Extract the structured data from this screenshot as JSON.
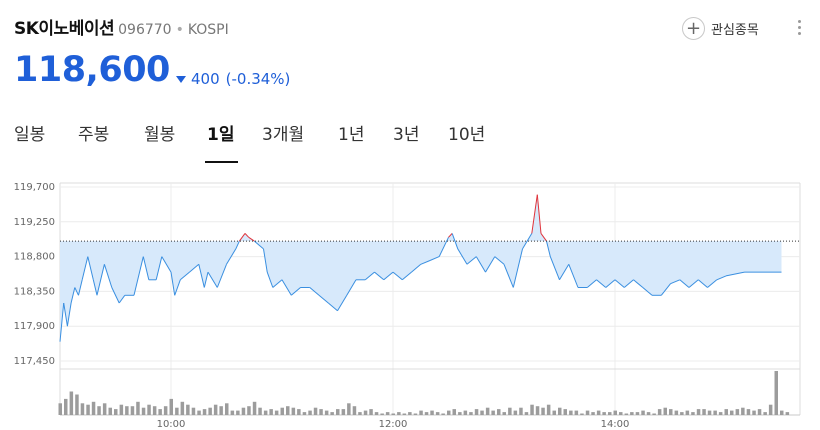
{
  "stock": {
    "name": "SK이노베이션",
    "code": "096770",
    "separator": "•",
    "market": "KOSPI",
    "price": "118,600",
    "change": "400",
    "change_pct": "(-0.34%)",
    "direction": "down"
  },
  "favorite": {
    "icon": "plus-circle-icon",
    "label": "관심종목"
  },
  "more": {
    "icon": "more-vertical-icon"
  },
  "tabs": [
    {
      "label": "일봉",
      "active": false
    },
    {
      "label": "주봉",
      "active": false
    },
    {
      "label": "월봉",
      "active": false
    },
    {
      "label": "1일",
      "active": true
    },
    {
      "label": "3개월",
      "active": false
    },
    {
      "label": "1년",
      "active": false
    },
    {
      "label": "3년",
      "active": false
    },
    {
      "label": "10년",
      "active": false
    }
  ],
  "colors": {
    "up": "#e0333b",
    "down": "#1f5fd8",
    "line": "#3a8fe0",
    "fill": "#d7e9fb",
    "volume": "#9c9c9c",
    "grid": "#ececec"
  },
  "chart_data": {
    "type": "line",
    "session": {
      "start": "09:00",
      "end": "15:30"
    },
    "reference_price": 119000,
    "ylim": [
      117450,
      119700
    ],
    "y_ticks": [
      "119,700",
      "119,250",
      "118,800",
      "118,350",
      "117,900",
      "117,450"
    ],
    "x_ticks": [
      "10:00",
      "12:00",
      "14:00"
    ],
    "x_tick_minutes": [
      60,
      180,
      300
    ],
    "price_series": [
      [
        0,
        117700
      ],
      [
        2,
        118200
      ],
      [
        4,
        117900
      ],
      [
        6,
        118200
      ],
      [
        8,
        118400
      ],
      [
        10,
        118300
      ],
      [
        12,
        118500
      ],
      [
        15,
        118800
      ],
      [
        18,
        118500
      ],
      [
        20,
        118300
      ],
      [
        24,
        118700
      ],
      [
        28,
        118400
      ],
      [
        32,
        118200
      ],
      [
        35,
        118300
      ],
      [
        40,
        118300
      ],
      [
        45,
        118800
      ],
      [
        48,
        118500
      ],
      [
        52,
        118500
      ],
      [
        55,
        118800
      ],
      [
        60,
        118600
      ],
      [
        62,
        118300
      ],
      [
        65,
        118500
      ],
      [
        70,
        118600
      ],
      [
        75,
        118700
      ],
      [
        78,
        118400
      ],
      [
        80,
        118600
      ],
      [
        85,
        118400
      ],
      [
        90,
        118700
      ],
      [
        95,
        118900
      ],
      [
        97,
        119000
      ],
      [
        100,
        119100
      ],
      [
        102,
        119050
      ],
      [
        105,
        119000
      ],
      [
        110,
        118900
      ],
      [
        112,
        118600
      ],
      [
        115,
        118400
      ],
      [
        120,
        118500
      ],
      [
        125,
        118300
      ],
      [
        130,
        118400
      ],
      [
        135,
        118400
      ],
      [
        140,
        118300
      ],
      [
        145,
        118200
      ],
      [
        150,
        118100
      ],
      [
        155,
        118300
      ],
      [
        160,
        118500
      ],
      [
        165,
        118500
      ],
      [
        170,
        118600
      ],
      [
        175,
        118500
      ],
      [
        180,
        118600
      ],
      [
        185,
        118500
      ],
      [
        190,
        118600
      ],
      [
        195,
        118700
      ],
      [
        200,
        118750
      ],
      [
        205,
        118800
      ],
      [
        210,
        119050
      ],
      [
        212,
        119100
      ],
      [
        215,
        118900
      ],
      [
        220,
        118700
      ],
      [
        225,
        118800
      ],
      [
        230,
        118600
      ],
      [
        235,
        118800
      ],
      [
        240,
        118700
      ],
      [
        245,
        118400
      ],
      [
        250,
        118900
      ],
      [
        255,
        119100
      ],
      [
        258,
        119600
      ],
      [
        260,
        119100
      ],
      [
        263,
        119000
      ],
      [
        265,
        118800
      ],
      [
        270,
        118500
      ],
      [
        275,
        118700
      ],
      [
        280,
        118400
      ],
      [
        285,
        118400
      ],
      [
        290,
        118500
      ],
      [
        295,
        118400
      ],
      [
        300,
        118500
      ],
      [
        305,
        118400
      ],
      [
        310,
        118500
      ],
      [
        315,
        118400
      ],
      [
        320,
        118300
      ],
      [
        325,
        118300
      ],
      [
        330,
        118450
      ],
      [
        335,
        118500
      ],
      [
        340,
        118400
      ],
      [
        345,
        118500
      ],
      [
        350,
        118400
      ],
      [
        355,
        118500
      ],
      [
        360,
        118550
      ],
      [
        370,
        118600
      ],
      [
        380,
        118600
      ],
      [
        390,
        118600
      ]
    ],
    "volume_bars": [
      [
        0,
        8
      ],
      [
        3,
        11
      ],
      [
        6,
        16
      ],
      [
        9,
        14
      ],
      [
        12,
        8
      ],
      [
        15,
        7
      ],
      [
        18,
        9
      ],
      [
        21,
        6
      ],
      [
        24,
        8
      ],
      [
        27,
        5
      ],
      [
        30,
        4
      ],
      [
        33,
        7
      ],
      [
        36,
        6
      ],
      [
        39,
        6
      ],
      [
        42,
        9
      ],
      [
        45,
        5
      ],
      [
        48,
        7
      ],
      [
        51,
        6
      ],
      [
        54,
        4
      ],
      [
        57,
        6
      ],
      [
        60,
        11
      ],
      [
        63,
        5
      ],
      [
        66,
        9
      ],
      [
        69,
        7
      ],
      [
        72,
        5
      ],
      [
        75,
        3
      ],
      [
        78,
        4
      ],
      [
        81,
        5
      ],
      [
        84,
        7
      ],
      [
        87,
        6
      ],
      [
        90,
        8
      ],
      [
        93,
        3
      ],
      [
        96,
        3
      ],
      [
        99,
        5
      ],
      [
        102,
        6
      ],
      [
        105,
        9
      ],
      [
        108,
        5
      ],
      [
        111,
        3
      ],
      [
        114,
        4
      ],
      [
        117,
        3
      ],
      [
        120,
        5
      ],
      [
        123,
        6
      ],
      [
        126,
        5
      ],
      [
        129,
        4
      ],
      [
        132,
        2
      ],
      [
        135,
        3
      ],
      [
        138,
        5
      ],
      [
        141,
        4
      ],
      [
        144,
        3
      ],
      [
        147,
        2
      ],
      [
        150,
        4
      ],
      [
        153,
        4
      ],
      [
        156,
        8
      ],
      [
        159,
        6
      ],
      [
        162,
        2
      ],
      [
        165,
        3
      ],
      [
        168,
        4
      ],
      [
        171,
        2
      ],
      [
        174,
        1
      ],
      [
        177,
        2
      ],
      [
        180,
        1
      ],
      [
        183,
        2
      ],
      [
        186,
        1
      ],
      [
        189,
        2
      ],
      [
        192,
        1
      ],
      [
        195,
        3
      ],
      [
        198,
        2
      ],
      [
        201,
        3
      ],
      [
        204,
        2
      ],
      [
        207,
        1
      ],
      [
        210,
        3
      ],
      [
        213,
        4
      ],
      [
        216,
        2
      ],
      [
        219,
        3
      ],
      [
        222,
        2
      ],
      [
        225,
        4
      ],
      [
        228,
        3
      ],
      [
        231,
        5
      ],
      [
        234,
        3
      ],
      [
        237,
        4
      ],
      [
        240,
        2
      ],
      [
        243,
        5
      ],
      [
        246,
        3
      ],
      [
        249,
        5
      ],
      [
        252,
        2
      ],
      [
        255,
        7
      ],
      [
        258,
        6
      ],
      [
        261,
        5
      ],
      [
        264,
        7
      ],
      [
        267,
        3
      ],
      [
        270,
        5
      ],
      [
        273,
        4
      ],
      [
        276,
        3
      ],
      [
        279,
        3
      ],
      [
        282,
        1
      ],
      [
        285,
        3
      ],
      [
        288,
        2
      ],
      [
        291,
        3
      ],
      [
        294,
        2
      ],
      [
        297,
        2
      ],
      [
        300,
        3
      ],
      [
        303,
        2
      ],
      [
        306,
        1
      ],
      [
        309,
        2
      ],
      [
        312,
        2
      ],
      [
        315,
        3
      ],
      [
        318,
        2
      ],
      [
        321,
        1
      ],
      [
        324,
        4
      ],
      [
        327,
        5
      ],
      [
        330,
        4
      ],
      [
        333,
        3
      ],
      [
        336,
        2
      ],
      [
        339,
        3
      ],
      [
        342,
        2
      ],
      [
        345,
        4
      ],
      [
        348,
        4
      ],
      [
        351,
        3
      ],
      [
        354,
        3
      ],
      [
        357,
        2
      ],
      [
        360,
        4
      ],
      [
        363,
        3
      ],
      [
        366,
        4
      ],
      [
        369,
        5
      ],
      [
        372,
        4
      ],
      [
        375,
        3
      ],
      [
        378,
        4
      ],
      [
        381,
        2
      ],
      [
        384,
        7
      ],
      [
        387,
        30
      ],
      [
        390,
        3
      ],
      [
        393,
        2
      ]
    ],
    "volume_max": 30,
    "grid": true
  }
}
